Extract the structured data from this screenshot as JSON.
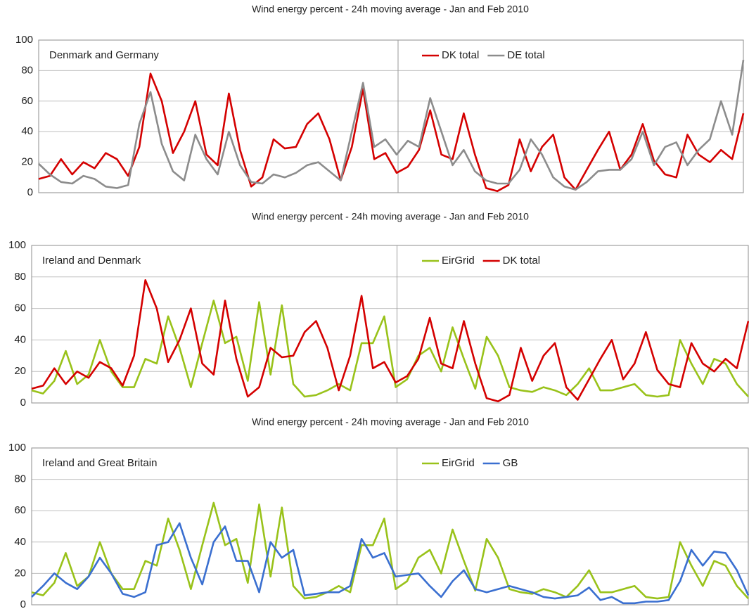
{
  "chart_data": [
    {
      "type": "line",
      "title": "Wind energy percent - 24h moving average - Jan and Feb 2010",
      "annotation": "Denmark and Germany",
      "ylim": [
        0,
        100
      ],
      "yticks": [
        0,
        20,
        40,
        60,
        80,
        100
      ],
      "grid": true,
      "legend": "top",
      "series": [
        {
          "name": "DK total",
          "color": "#d40000",
          "values": [
            9,
            11,
            22,
            12,
            20,
            16,
            26,
            22,
            11,
            30,
            78,
            60,
            26,
            40,
            60,
            25,
            18,
            65,
            28,
            4,
            10,
            35,
            29,
            30,
            45,
            52,
            35,
            8,
            30,
            68,
            22,
            26,
            13,
            17,
            28,
            54,
            25,
            22,
            52,
            25,
            3,
            1,
            5,
            35,
            14,
            30,
            38,
            10,
            2,
            15,
            28,
            40,
            15,
            25,
            45,
            21,
            12,
            10,
            38,
            25,
            20,
            28,
            22,
            52
          ]
        },
        {
          "name": "DE total",
          "color": "#8c8c8c",
          "values": [
            19,
            12,
            7,
            6,
            11,
            9,
            4,
            3,
            5,
            45,
            66,
            32,
            14,
            8,
            38,
            22,
            12,
            40,
            18,
            7,
            6,
            12,
            10,
            13,
            18,
            20,
            14,
            8,
            40,
            72,
            30,
            35,
            25,
            34,
            30,
            62,
            40,
            18,
            28,
            14,
            8,
            6,
            6,
            15,
            35,
            25,
            10,
            4,
            2,
            7,
            14,
            15,
            15,
            22,
            40,
            18,
            30,
            33,
            18,
            28,
            35,
            60,
            38,
            87
          ]
        }
      ]
    },
    {
      "type": "line",
      "title": "Wind energy percent - 24h moving average - Jan and Feb 2010",
      "annotation": "Ireland and Denmark",
      "ylim": [
        0,
        100
      ],
      "yticks": [
        0,
        20,
        40,
        60,
        80,
        100
      ],
      "grid": true,
      "legend": "top",
      "series": [
        {
          "name": "EirGrid",
          "color": "#99c21a",
          "values": [
            8,
            6,
            14,
            33,
            12,
            18,
            40,
            20,
            10,
            10,
            28,
            25,
            55,
            35,
            10,
            38,
            65,
            38,
            42,
            14,
            64,
            18,
            62,
            12,
            4,
            5,
            8,
            12,
            8,
            38,
            38,
            55,
            10,
            15,
            30,
            35,
            20,
            48,
            28,
            9,
            42,
            30,
            10,
            8,
            7,
            10,
            8,
            5,
            12,
            22,
            8,
            8,
            10,
            12,
            5,
            4,
            5,
            40,
            25,
            12,
            28,
            25,
            12,
            4
          ]
        },
        {
          "name": "DK total",
          "color": "#d40000",
          "values": [
            9,
            11,
            22,
            12,
            20,
            16,
            26,
            22,
            11,
            30,
            78,
            60,
            26,
            40,
            60,
            25,
            18,
            65,
            28,
            4,
            10,
            35,
            29,
            30,
            45,
            52,
            35,
            8,
            30,
            68,
            22,
            26,
            13,
            17,
            28,
            54,
            25,
            22,
            52,
            25,
            3,
            1,
            5,
            35,
            14,
            30,
            38,
            10,
            2,
            15,
            28,
            40,
            15,
            25,
            45,
            21,
            12,
            10,
            38,
            25,
            20,
            28,
            22,
            52
          ]
        }
      ]
    },
    {
      "type": "line",
      "title": "Wind energy percent - 24h moving average - Jan and Feb 2010",
      "annotation": "Ireland and Great Britain",
      "ylim": [
        0,
        100
      ],
      "yticks": [
        0,
        20,
        40,
        60,
        80,
        100
      ],
      "grid": true,
      "legend": "top",
      "series": [
        {
          "name": "EirGrid",
          "color": "#99c21a",
          "values": [
            8,
            6,
            14,
            33,
            12,
            18,
            40,
            20,
            10,
            10,
            28,
            25,
            55,
            35,
            10,
            38,
            65,
            38,
            42,
            14,
            64,
            18,
            62,
            12,
            4,
            5,
            8,
            12,
            8,
            38,
            38,
            55,
            10,
            15,
            30,
            35,
            20,
            48,
            28,
            9,
            42,
            30,
            10,
            8,
            7,
            10,
            8,
            5,
            12,
            22,
            8,
            8,
            10,
            12,
            5,
            4,
            5,
            40,
            25,
            12,
            28,
            25,
            12,
            4
          ]
        },
        {
          "name": "GB",
          "color": "#3a6fd0",
          "values": [
            5,
            12,
            20,
            14,
            10,
            18,
            30,
            20,
            7,
            5,
            8,
            38,
            40,
            52,
            30,
            13,
            40,
            50,
            28,
            28,
            8,
            40,
            30,
            35,
            6,
            7,
            8,
            8,
            12,
            42,
            30,
            33,
            18,
            19,
            20,
            12,
            5,
            15,
            22,
            10,
            8,
            10,
            12,
            10,
            8,
            5,
            4,
            5,
            6,
            11,
            3,
            5,
            1,
            1,
            2,
            2,
            3,
            15,
            35,
            25,
            34,
            33,
            22,
            6
          ]
        }
      ]
    }
  ]
}
